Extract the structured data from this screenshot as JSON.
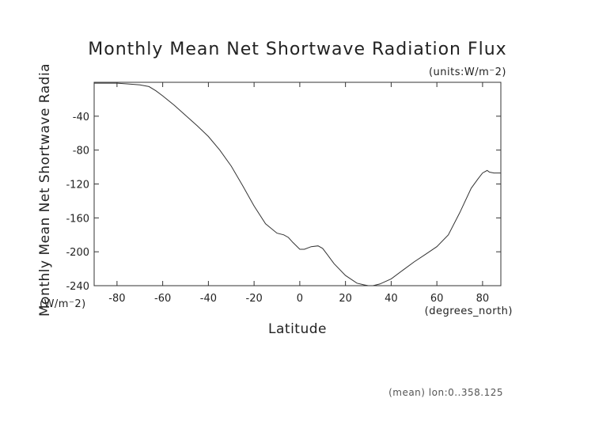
{
  "chart_data": {
    "type": "line",
    "title": "Monthly Mean Net Shortwave Radiation Flux",
    "units_label": "(units:W/m⁻2)",
    "xlabel": "Latitude",
    "x_units_label": "(degrees_north)",
    "ylabel": "Monthly Mean Net Shortwave Radia",
    "y_units_label": "(W/m⁻2)",
    "footnote": "(mean) lon:0..358.125",
    "xlim": [
      -90,
      88
    ],
    "ylim": [
      -240,
      0
    ],
    "x_ticks": [
      -80,
      -60,
      -40,
      -20,
      0,
      20,
      40,
      60,
      80
    ],
    "x_tick_labels": [
      "-80",
      "-60",
      "-40",
      "-20",
      "0",
      "20",
      "40",
      "60",
      "80"
    ],
    "y_ticks": [
      -40,
      -80,
      -120,
      -160,
      -200,
      -240
    ],
    "y_tick_labels": [
      "-40",
      "-80",
      "-120",
      "-160",
      "-200",
      "-240"
    ],
    "grid": false,
    "series": [
      {
        "x": [
          -90,
          -85,
          -80,
          -75,
          -70,
          -66,
          -63,
          -60,
          -55,
          -50,
          -45,
          -40,
          -35,
          -30,
          -25,
          -20,
          -15,
          -10,
          -7,
          -5,
          -3,
          0,
          2,
          5,
          8,
          10,
          12,
          15,
          20,
          25,
          28,
          30,
          32,
          35,
          40,
          45,
          50,
          55,
          60,
          65,
          70,
          75,
          78,
          80,
          82,
          83,
          85,
          88
        ],
        "y": [
          -1,
          -1,
          -1,
          -2,
          -3,
          -5,
          -10,
          -16,
          -27,
          -39,
          -51,
          -64,
          -80,
          -99,
          -122,
          -146,
          -167,
          -178,
          -180,
          -183,
          -189,
          -197,
          -197,
          -194,
          -193,
          -196,
          -203,
          -214,
          -228,
          -237,
          -239,
          -240,
          -240,
          -238,
          -232,
          -222,
          -212,
          -203,
          -194,
          -180,
          -154,
          -125,
          -114,
          -107,
          -104,
          -106,
          -107,
          -107
        ]
      }
    ]
  }
}
